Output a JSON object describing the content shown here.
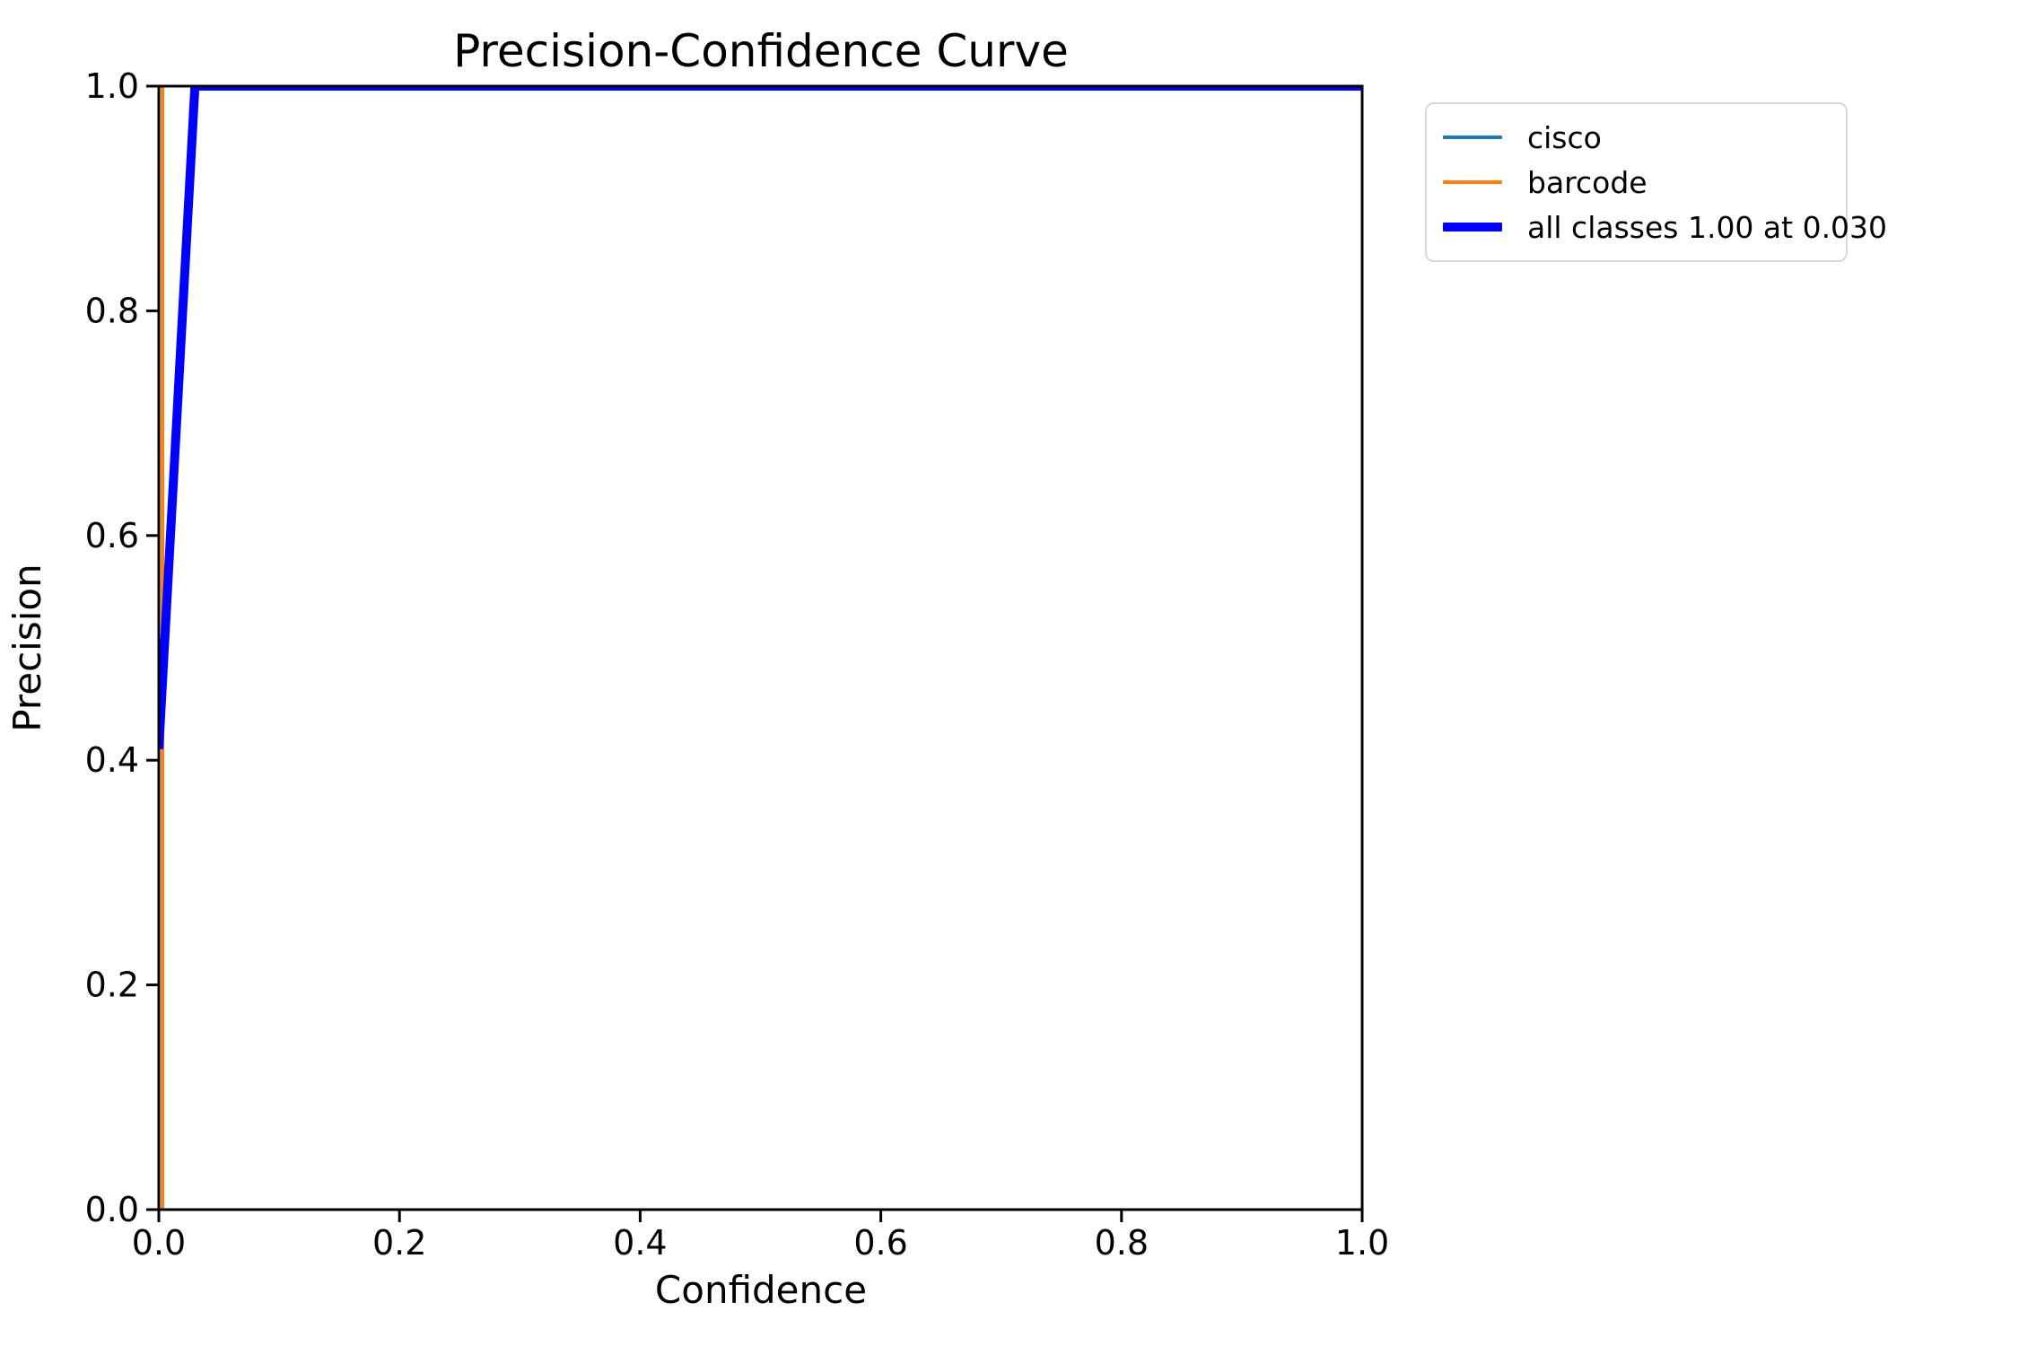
{
  "chart_data": {
    "type": "line",
    "title": "Precision-Confidence Curve",
    "xlabel": "Confidence",
    "ylabel": "Precision",
    "xlim": [
      0.0,
      1.0
    ],
    "ylim": [
      0.0,
      1.0
    ],
    "grid": false,
    "legend_position": "outside-upper-right",
    "xticks": {
      "values": [
        0.0,
        0.2,
        0.4,
        0.6,
        0.8,
        1.0
      ],
      "labels": [
        "0.0",
        "0.2",
        "0.4",
        "0.6",
        "0.8",
        "1.0"
      ]
    },
    "yticks": {
      "values": [
        0.0,
        0.2,
        0.4,
        0.6,
        0.8,
        1.0
      ],
      "labels": [
        "0.0",
        "0.2",
        "0.4",
        "0.6",
        "0.8",
        "1.0"
      ]
    },
    "series": [
      {
        "id": "cisco",
        "label": "cisco",
        "color": "#1f77b4",
        "line_width": 4,
        "hidden_under_all_classes": true,
        "points": [
          [
            0.0,
            0.41
          ],
          [
            0.03,
            1.0
          ],
          [
            1.0,
            1.0
          ]
        ]
      },
      {
        "id": "barcode",
        "label": "barcode",
        "color": "#ff7f0e",
        "line_width": 4,
        "points": [
          [
            0.003,
            0.0
          ],
          [
            0.003,
            1.0
          ]
        ]
      },
      {
        "id": "all-classes",
        "label": "all classes 1.00 at 0.030",
        "color": "#0000ff",
        "line_width": 10,
        "points": [
          [
            0.0,
            0.41
          ],
          [
            0.03,
            1.0
          ],
          [
            1.0,
            1.0
          ]
        ]
      }
    ],
    "annotations": {
      "all_classes_max_precision": "1.00",
      "all_classes_at_confidence": "0.030"
    }
  },
  "colors": {
    "axes": "#000000",
    "text": "#000000",
    "legend_border": "#d8d8d8",
    "background": "#ffffff"
  }
}
